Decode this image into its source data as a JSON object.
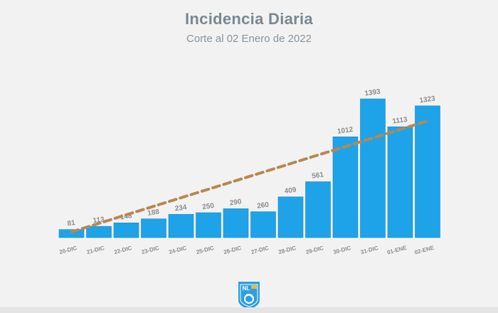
{
  "header": {
    "title": "Incidencia Diaria",
    "subtitle": "Corte al 02 Enero de 2022"
  },
  "logo": {
    "text": "NL",
    "icon": "nuevo-leon-logo"
  },
  "colors": {
    "bar": "#1fa3e8",
    "bar_edge": "#1488c6",
    "trend": "#b8874f",
    "label": "#8c8c8c",
    "background": "#f2f2f2",
    "logo": "#2d9fe0"
  },
  "chart_data": {
    "type": "bar",
    "title": "Incidencia Diaria",
    "subtitle": "Corte al 02 Enero de 2022",
    "xlabel": "",
    "ylabel": "",
    "categories": [
      "20-DIC",
      "21-DIC",
      "22-DIC",
      "23-DIC",
      "24-DIC",
      "25-DIC",
      "26-DIC",
      "27-DIC",
      "28-DIC",
      "29-DIC",
      "30-DIC",
      "31-DIC",
      "01-ENE",
      "02-ENE"
    ],
    "values": [
      81,
      113,
      148,
      188,
      234,
      250,
      290,
      260,
      409,
      561,
      1012,
      1393,
      1113,
      1323
    ],
    "ylim": [
      0,
      1393
    ],
    "grid": false,
    "trendline": {
      "style": "dashed",
      "start": 0,
      "end": 1172
    }
  }
}
